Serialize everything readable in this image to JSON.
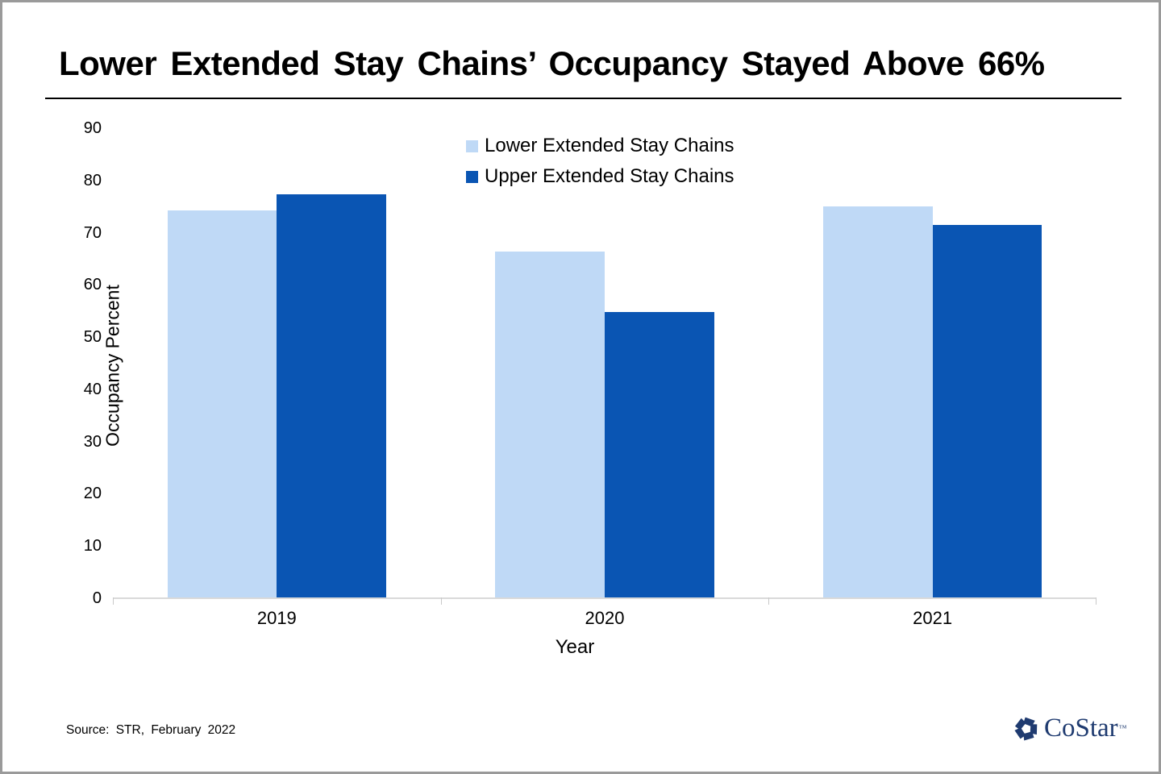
{
  "title": "Lower Extended Stay Chains’ Occupancy Stayed Above 66%",
  "legend": [
    {
      "label": "Lower Extended Stay Chains",
      "color": "#bfd9f6"
    },
    {
      "label": "Upper Extended Stay Chains",
      "color": "#0a55b3"
    }
  ],
  "chart_data": {
    "type": "bar",
    "categories": [
      "2019",
      "2020",
      "2021"
    ],
    "series": [
      {
        "name": "Lower Extended Stay Chains",
        "color": "#bfd9f6",
        "values": [
          74.1,
          66.3,
          74.9
        ]
      },
      {
        "name": "Upper Extended Stay Chains",
        "color": "#0a55b3",
        "values": [
          77.2,
          54.7,
          71.3
        ]
      }
    ],
    "title": "Lower Extended Stay Chains’ Occupancy Stayed Above 66%",
    "xlabel": "Year",
    "ylabel": "Occupancy Percent",
    "ylim": [
      0,
      90
    ],
    "yticks": [
      0,
      10,
      20,
      30,
      40,
      50,
      60,
      70,
      80,
      90
    ],
    "grid": false,
    "legend_position": "top-center",
    "axis_line_color": "#d9d9d9"
  },
  "source": "Source: STR, February 2022",
  "logo": {
    "text": "CoStar",
    "tm": "™",
    "color": "#1f3b70"
  }
}
